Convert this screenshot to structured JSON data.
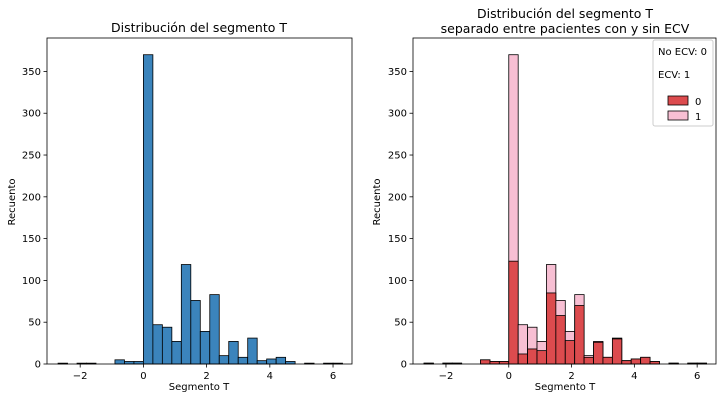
{
  "chart_data": [
    {
      "type": "bar",
      "title": "Distribución del segmento T",
      "subtitle": "",
      "xlabel": "Segmento T",
      "ylabel": "Recuento",
      "xlim": [
        -3.05,
        6.6
      ],
      "ylim": [
        0,
        390
      ],
      "xticks": [
        -2,
        0,
        2,
        4,
        6
      ],
      "yticks": [
        0,
        50,
        100,
        150,
        200,
        250,
        300,
        350
      ],
      "bin_width": 0.3,
      "bin_starts": [
        -2.7,
        -2.4,
        -2.1,
        -1.8,
        -1.5,
        -1.2,
        -0.9,
        -0.6,
        -0.3,
        0.0,
        0.3,
        0.6,
        0.9,
        1.2,
        1.5,
        1.8,
        2.1,
        2.4,
        2.7,
        3.0,
        3.3,
        3.6,
        3.9,
        4.2,
        4.5,
        4.8,
        5.1,
        5.4,
        5.7,
        6.0
      ],
      "color": "#3b84bc",
      "values": [
        1,
        0,
        1,
        1,
        0,
        0,
        5,
        3,
        3,
        370,
        47,
        44,
        27,
        119,
        76,
        39,
        83,
        10,
        27,
        8,
        31,
        4,
        6,
        8,
        3,
        0,
        1,
        0,
        1,
        1
      ]
    },
    {
      "type": "bar",
      "stacked": true,
      "title": "Distribución del segmento T",
      "subtitle": "separado entre pacientes con y sin ECV",
      "xlabel": "Segmento T",
      "ylabel": "Recuento",
      "xlim": [
        -3.05,
        6.6
      ],
      "ylim": [
        0,
        390
      ],
      "xticks": [
        -2,
        0,
        2,
        4,
        6
      ],
      "yticks": [
        0,
        50,
        100,
        150,
        200,
        250,
        300,
        350
      ],
      "bin_width": 0.3,
      "bin_starts": [
        -2.7,
        -2.4,
        -2.1,
        -1.8,
        -1.5,
        -1.2,
        -0.9,
        -0.6,
        -0.3,
        0.0,
        0.3,
        0.6,
        0.9,
        1.2,
        1.5,
        1.8,
        2.1,
        2.4,
        2.7,
        3.0,
        3.3,
        3.6,
        3.9,
        4.2,
        4.5,
        4.8,
        5.1,
        5.4,
        5.7,
        6.0
      ],
      "series": [
        {
          "name": "0",
          "color": "#dc4b4e",
          "values": [
            1,
            0,
            1,
            1,
            0,
            0,
            5,
            3,
            3,
            123,
            12,
            18,
            16,
            85,
            58,
            28,
            70,
            8,
            26,
            8,
            30,
            4,
            6,
            8,
            3,
            0,
            1,
            0,
            1,
            1
          ]
        },
        {
          "name": "1",
          "color": "#f7bfd3",
          "values": [
            0,
            0,
            0,
            0,
            0,
            0,
            0,
            0,
            0,
            247,
            35,
            26,
            11,
            34,
            18,
            11,
            13,
            2,
            1,
            0,
            1,
            0,
            0,
            0,
            0,
            0,
            0,
            0,
            0,
            0
          ]
        }
      ],
      "legend": {
        "placement": "top-right",
        "note_lines": [
          "No ECV: 0",
          "ECV: 1"
        ],
        "entries": [
          "0",
          "1"
        ]
      }
    }
  ]
}
